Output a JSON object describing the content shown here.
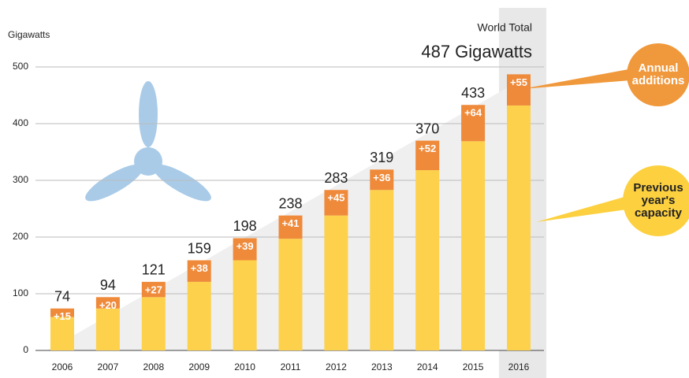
{
  "chart_data": {
    "type": "stacked_bar",
    "y_label": "Gigawatts",
    "annotation_title": "World Total",
    "annotation_value": "487 Gigawatts",
    "categories": [
      "2006",
      "2007",
      "2008",
      "2009",
      "2010",
      "2011",
      "2012",
      "2013",
      "2014",
      "2015",
      "2016"
    ],
    "series": [
      {
        "name": "Previous year's capacity",
        "color": "#fdd14b",
        "values": [
          59,
          74,
          94,
          121,
          159,
          197,
          238,
          283,
          318,
          369,
          432
        ]
      },
      {
        "name": "Annual additions",
        "color": "#ef8a3b",
        "values": [
          15,
          20,
          27,
          38,
          39,
          41,
          45,
          36,
          52,
          64,
          55
        ],
        "value_labels": [
          "+15",
          "+20",
          "+27",
          "+38",
          "+39",
          "+41",
          "+45",
          "+36",
          "+52",
          "+64",
          "+55"
        ]
      }
    ],
    "totals": [
      74,
      94,
      121,
      159,
      198,
      238,
      283,
      319,
      370,
      433,
      null
    ],
    "ylim": [
      0,
      500
    ],
    "yticks": [
      0,
      100,
      200,
      300,
      400,
      500
    ],
    "grid": true
  }
}
